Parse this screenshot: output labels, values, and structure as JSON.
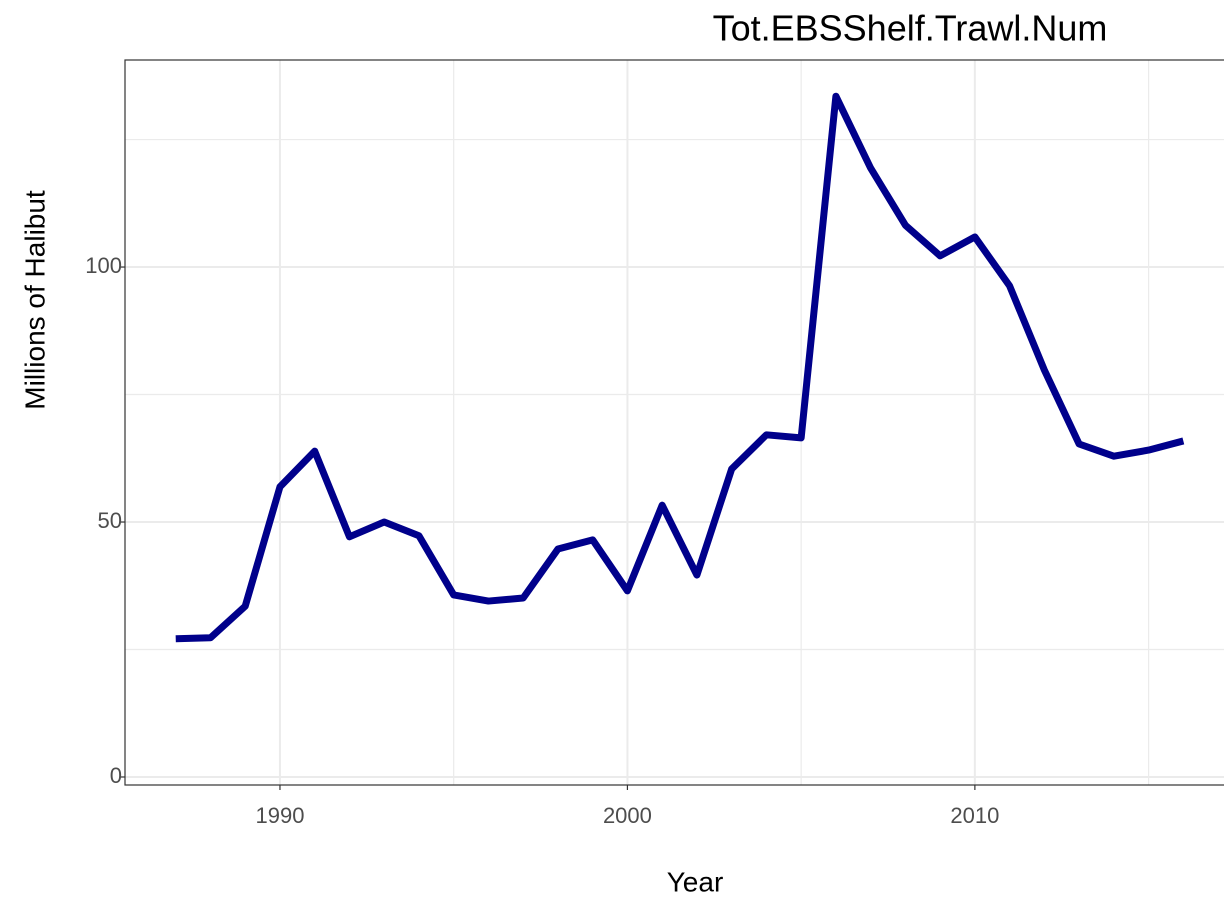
{
  "chart_data": {
    "type": "line",
    "title": "Tot.EBSShelf.Trawl.Num",
    "x_label": "Year",
    "y_label": "Millions of Halibut",
    "x": [
      1987,
      1988,
      1989,
      1990,
      1991,
      1992,
      1993,
      1994,
      1995,
      1996,
      1997,
      1998,
      1999,
      2000,
      2001,
      2002,
      2003,
      2004,
      2005,
      2006,
      2007,
      2008,
      2009,
      2010,
      2011,
      2012,
      2013,
      2014,
      2015,
      2016
    ],
    "series": [
      {
        "color": "#00008b",
        "values": [
          27.1,
          27.3,
          33.5,
          56.9,
          63.9,
          47.1,
          50.0,
          47.3,
          35.7,
          34.5,
          35.1,
          44.7,
          46.5,
          36.5,
          53.3,
          39.6,
          60.4,
          67.1,
          66.5,
          133.5,
          119.4,
          108.2,
          102.2,
          105.9,
          96.3,
          79.8,
          65.3,
          62.9,
          64.1,
          65.9
        ]
      }
    ],
    "xlim": [
      1985.54,
      2017.17
    ],
    "ylim": [
      -1.57,
      140.6
    ],
    "xticks": [
      1990,
      2000,
      2010
    ],
    "yticks": [
      0,
      50,
      100
    ],
    "x_minor_grid": [
      1995,
      2005,
      2015
    ],
    "y_minor_grid": [
      25,
      75,
      125
    ],
    "grid": true
  }
}
